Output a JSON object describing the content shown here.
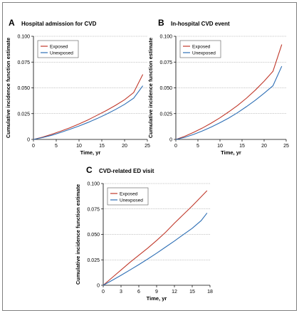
{
  "chart_data": [
    {
      "type": "line",
      "panel": "A",
      "title": "Hospital admission for CVD",
      "xlabel": "Time, yr",
      "ylabel": "Cumulative incidence function estimate",
      "xlim": [
        0,
        25
      ],
      "ylim": [
        0,
        0.1
      ],
      "xticks": [
        "0",
        "5",
        "10",
        "15",
        "20",
        "25"
      ],
      "yticks": [
        "0",
        "0.025",
        "0.050",
        "0.075",
        "0.100"
      ],
      "grid": "horizontal",
      "legend": "top-left",
      "series": [
        {
          "name": "Exposed",
          "color": "#c0392b",
          "x": [
            0,
            2,
            4,
            6,
            8,
            10,
            12,
            14,
            16,
            18,
            20,
            22,
            24
          ],
          "y": [
            0,
            0.0022,
            0.005,
            0.008,
            0.0113,
            0.015,
            0.019,
            0.0235,
            0.028,
            0.033,
            0.0385,
            0.0455,
            0.063
          ]
        },
        {
          "name": "Unexposed",
          "color": "#2e6fb5",
          "x": [
            0,
            2,
            4,
            6,
            8,
            10,
            12,
            14,
            16,
            18,
            20,
            22,
            24
          ],
          "y": [
            0,
            0.0018,
            0.004,
            0.0068,
            0.0098,
            0.013,
            0.0165,
            0.0203,
            0.0245,
            0.029,
            0.034,
            0.04,
            0.052
          ]
        }
      ]
    },
    {
      "type": "line",
      "panel": "B",
      "title": "In-hospital CVD event",
      "xlabel": "Time, yr",
      "ylabel": "Cumulative incidence function estimate",
      "xlim": [
        0,
        25
      ],
      "ylim": [
        0,
        0.1
      ],
      "xticks": [
        "0",
        "5",
        "10",
        "15",
        "20",
        "25"
      ],
      "yticks": [
        "0",
        "0.025",
        "0.050",
        "0.075",
        "0.100"
      ],
      "grid": "horizontal",
      "legend": "top-left",
      "series": [
        {
          "name": "Exposed",
          "color": "#c0392b",
          "x": [
            0,
            2,
            4,
            6,
            8,
            10,
            12,
            14,
            16,
            18,
            20,
            22,
            24
          ],
          "y": [
            0,
            0.003,
            0.0068,
            0.011,
            0.0158,
            0.021,
            0.0268,
            0.033,
            0.04,
            0.0478,
            0.0565,
            0.066,
            0.092
          ]
        },
        {
          "name": "Unexposed",
          "color": "#2e6fb5",
          "x": [
            0,
            2,
            4,
            6,
            8,
            10,
            12,
            14,
            16,
            18,
            20,
            22,
            24
          ],
          "y": [
            0,
            0.002,
            0.0048,
            0.0082,
            0.012,
            0.0162,
            0.0208,
            0.026,
            0.0318,
            0.038,
            0.0448,
            0.052,
            0.071
          ]
        }
      ]
    },
    {
      "type": "line",
      "panel": "C",
      "title": "CVD-related ED visit",
      "xlabel": "Time, yr",
      "ylabel": "Cumulative incidence function estimate",
      "xlim": [
        0,
        18
      ],
      "ylim": [
        0,
        0.1
      ],
      "xticks": [
        "0",
        "3",
        "6",
        "9",
        "12",
        "15",
        "18"
      ],
      "yticks": [
        "0",
        "0.025",
        "0.050",
        "0.075",
        "0.100"
      ],
      "grid": "horizontal",
      "legend": "top-left",
      "series": [
        {
          "name": "Exposed",
          "color": "#c0392b",
          "x": [
            0,
            1.5,
            3,
            4.5,
            6,
            7.5,
            9,
            10.5,
            12,
            13.5,
            15,
            16.5,
            17.5
          ],
          "y": [
            0,
            0.0075,
            0.015,
            0.0225,
            0.0295,
            0.0365,
            0.044,
            0.052,
            0.061,
            0.0695,
            0.078,
            0.087,
            0.093
          ]
        },
        {
          "name": "Unexposed",
          "color": "#2e6fb5",
          "x": [
            0,
            1.5,
            3,
            4.5,
            6,
            7.5,
            9,
            10.5,
            12,
            13.5,
            15,
            16.5,
            17.5
          ],
          "y": [
            0,
            0.0048,
            0.0098,
            0.015,
            0.0203,
            0.0258,
            0.0315,
            0.0375,
            0.0435,
            0.0498,
            0.056,
            0.0635,
            0.071
          ]
        }
      ]
    }
  ]
}
